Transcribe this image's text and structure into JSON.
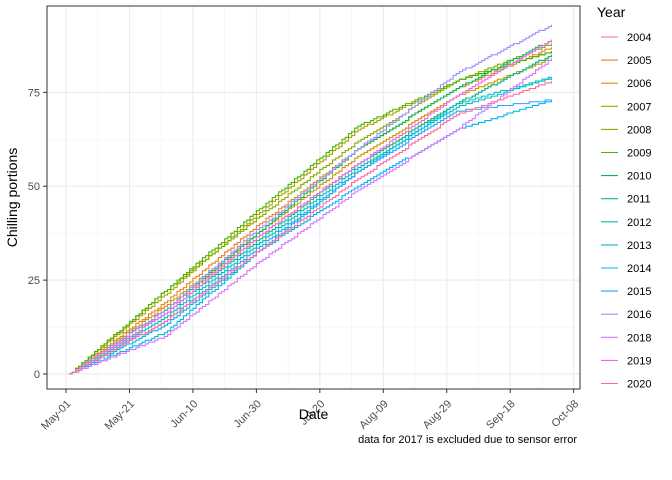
{
  "chart_data": {
    "type": "line",
    "xlabel": "Date",
    "ylabel": "Chilling portions",
    "caption": "data for 2017 is excluded due to sensor error",
    "legend_title": "Year",
    "legend_position": "right",
    "grid": true,
    "x_axis": {
      "type": "date",
      "min": "2020-04-25",
      "max": "2020-10-10"
    },
    "ylim": [
      -4,
      98
    ],
    "x_ticks": [
      {
        "date": "2020-05-01",
        "label": "May-01"
      },
      {
        "date": "2020-05-21",
        "label": "May-21"
      },
      {
        "date": "2020-06-10",
        "label": "Jun-10"
      },
      {
        "date": "2020-06-30",
        "label": "Jun-30"
      },
      {
        "date": "2020-07-20",
        "label": "Jul-20"
      },
      {
        "date": "2020-08-09",
        "label": "Aug-09"
      },
      {
        "date": "2020-08-29",
        "label": "Aug-29"
      },
      {
        "date": "2020-09-18",
        "label": "Sep-18"
      },
      {
        "date": "2020-10-08",
        "label": "Oct-08"
      }
    ],
    "y_ticks": [
      0,
      25,
      50,
      75
    ],
    "series": [
      {
        "name": "2004",
        "color": "#F8766D",
        "points": [
          [
            "2020-05-02",
            0
          ],
          [
            "2020-06-01",
            17
          ],
          [
            "2020-07-01",
            37
          ],
          [
            "2020-08-01",
            56
          ],
          [
            "2020-09-01",
            72
          ],
          [
            "2020-10-01",
            85
          ]
        ]
      },
      {
        "name": "2005",
        "color": "#E7851E",
        "points": [
          [
            "2020-05-02",
            0
          ],
          [
            "2020-06-01",
            19
          ],
          [
            "2020-07-01",
            40
          ],
          [
            "2020-08-01",
            60
          ],
          [
            "2020-09-01",
            76
          ],
          [
            "2020-10-01",
            87
          ]
        ]
      },
      {
        "name": "2006",
        "color": "#D09400",
        "points": [
          [
            "2020-05-02",
            0
          ],
          [
            "2020-06-01",
            18
          ],
          [
            "2020-07-01",
            38
          ],
          [
            "2020-08-01",
            58
          ],
          [
            "2020-09-01",
            74
          ],
          [
            "2020-10-01",
            84
          ]
        ]
      },
      {
        "name": "2007",
        "color": "#B2A100",
        "points": [
          [
            "2020-05-02",
            0
          ],
          [
            "2020-06-01",
            21
          ],
          [
            "2020-07-01",
            43
          ],
          [
            "2020-08-01",
            65
          ],
          [
            "2020-09-01",
            78
          ],
          [
            "2020-10-01",
            86
          ]
        ]
      },
      {
        "name": "2008",
        "color": "#89AC00",
        "points": [
          [
            "2020-05-02",
            0
          ],
          [
            "2020-06-01",
            22
          ],
          [
            "2020-07-01",
            42
          ],
          [
            "2020-08-01",
            62
          ],
          [
            "2020-09-01",
            78
          ],
          [
            "2020-10-01",
            88
          ]
        ]
      },
      {
        "name": "2009",
        "color": "#45B500",
        "points": [
          [
            "2020-05-02",
            0
          ],
          [
            "2020-06-01",
            22
          ],
          [
            "2020-07-01",
            44
          ],
          [
            "2020-08-01",
            66
          ],
          [
            "2020-09-01",
            78
          ],
          [
            "2020-10-01",
            86
          ]
        ]
      },
      {
        "name": "2010",
        "color": "#00BC51",
        "points": [
          [
            "2020-05-02",
            0
          ],
          [
            "2020-06-01",
            17
          ],
          [
            "2020-07-01",
            38
          ],
          [
            "2020-08-01",
            60
          ],
          [
            "2020-09-01",
            76
          ],
          [
            "2020-10-01",
            89
          ]
        ]
      },
      {
        "name": "2011",
        "color": "#00C087",
        "points": [
          [
            "2020-05-02",
            0
          ],
          [
            "2020-06-01",
            16
          ],
          [
            "2020-07-01",
            36
          ],
          [
            "2020-08-01",
            56
          ],
          [
            "2020-09-01",
            72
          ],
          [
            "2020-10-01",
            85
          ]
        ]
      },
      {
        "name": "2012",
        "color": "#00C0B2",
        "points": [
          [
            "2020-05-02",
            0
          ],
          [
            "2020-06-01",
            15
          ],
          [
            "2020-07-01",
            35
          ],
          [
            "2020-08-01",
            55
          ],
          [
            "2020-09-01",
            71
          ],
          [
            "2020-10-01",
            79
          ]
        ]
      },
      {
        "name": "2013",
        "color": "#00BCD6",
        "points": [
          [
            "2020-05-02",
            0
          ],
          [
            "2020-06-01",
            11
          ],
          [
            "2020-07-01",
            33
          ],
          [
            "2020-08-01",
            54
          ],
          [
            "2020-09-01",
            72
          ],
          [
            "2020-10-01",
            79
          ]
        ]
      },
      {
        "name": "2014",
        "color": "#00B3F2",
        "points": [
          [
            "2020-05-02",
            0
          ],
          [
            "2020-06-01",
            13
          ],
          [
            "2020-07-01",
            33
          ],
          [
            "2020-08-01",
            50
          ],
          [
            "2020-09-01",
            65
          ],
          [
            "2020-10-01",
            73
          ]
        ]
      },
      {
        "name": "2015",
        "color": "#29A3FF",
        "points": [
          [
            "2020-05-02",
            0
          ],
          [
            "2020-06-01",
            14
          ],
          [
            "2020-07-01",
            34
          ],
          [
            "2020-08-01",
            54
          ],
          [
            "2020-09-01",
            70
          ],
          [
            "2020-10-01",
            73
          ]
        ]
      },
      {
        "name": "2016",
        "color": "#9C8DFF",
        "points": [
          [
            "2020-05-02",
            0
          ],
          [
            "2020-06-01",
            17
          ],
          [
            "2020-07-01",
            39
          ],
          [
            "2020-08-01",
            60
          ],
          [
            "2020-09-01",
            80
          ],
          [
            "2020-10-01",
            93
          ]
        ]
      },
      {
        "name": "2018",
        "color": "#D277FF",
        "points": [
          [
            "2020-05-02",
            0
          ],
          [
            "2020-06-01",
            10
          ],
          [
            "2020-07-01",
            30
          ],
          [
            "2020-08-01",
            49
          ],
          [
            "2020-09-01",
            65
          ],
          [
            "2020-10-01",
            84
          ]
        ]
      },
      {
        "name": "2019",
        "color": "#F166E8",
        "points": [
          [
            "2020-05-02",
            0
          ],
          [
            "2020-06-01",
            16
          ],
          [
            "2020-07-01",
            37
          ],
          [
            "2020-08-01",
            56
          ],
          [
            "2020-09-01",
            74
          ],
          [
            "2020-10-01",
            89
          ]
        ]
      },
      {
        "name": "2020",
        "color": "#FF689F",
        "points": [
          [
            "2020-05-02",
            0
          ],
          [
            "2020-06-01",
            14
          ],
          [
            "2020-07-01",
            33
          ],
          [
            "2020-08-01",
            52
          ],
          [
            "2020-09-01",
            69
          ],
          [
            "2020-10-01",
            78
          ]
        ]
      }
    ]
  }
}
